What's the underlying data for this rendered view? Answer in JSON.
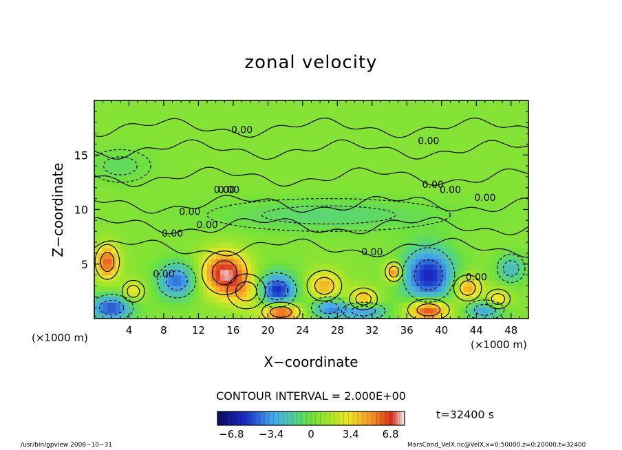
{
  "chart_data": {
    "type": "heatmap",
    "title": "zonal velocity",
    "xlabel": "X−coordinate",
    "ylabel": "Z−coordinate",
    "x_unit_left": "(×1000 m)",
    "x_unit_right": "(×1000 m)",
    "x_ticks": [
      "4",
      "8",
      "12",
      "16",
      "20",
      "24",
      "28",
      "32",
      "36",
      "40",
      "44",
      "48"
    ],
    "x_tick_values": [
      4,
      8,
      12,
      16,
      20,
      24,
      28,
      32,
      36,
      40,
      44,
      48
    ],
    "y_ticks": [
      "5",
      "10",
      "15"
    ],
    "y_tick_values": [
      5,
      10,
      15
    ],
    "xlim": [
      0,
      50
    ],
    "ylim": [
      0,
      20
    ],
    "contour_labels": [
      "0.00",
      "0.00",
      "0.00",
      "0.00",
      "0.00",
      "0.00",
      "0.00",
      "0.00",
      "0.00",
      "0.00",
      "0.00",
      "0.00",
      "0.00"
    ],
    "contour_label_positions": [
      [
        17,
        17
      ],
      [
        38.5,
        16
      ],
      [
        15.5,
        11.5
      ],
      [
        15,
        11.5
      ],
      [
        39,
        12
      ],
      [
        45,
        10.8
      ],
      [
        11,
        9.5
      ],
      [
        9,
        7.5
      ],
      [
        32,
        5.8
      ],
      [
        8,
        3.8
      ],
      [
        44,
        3.5
      ],
      [
        41,
        11.5
      ],
      [
        13,
        8.3
      ]
    ],
    "blobs": [
      {
        "x": 1.5,
        "z": 5.2,
        "v": 5.5,
        "rx": 1.4,
        "rz": 1.6
      },
      {
        "x": 15,
        "z": 4.2,
        "v": 6.8,
        "rx": 2.6,
        "rz": 2.0
      },
      {
        "x": 17.5,
        "z": 2.5,
        "v": 3.0,
        "rx": 2.2,
        "rz": 1.6
      },
      {
        "x": 9.5,
        "z": 3.5,
        "v": -5.0,
        "rx": 2.2,
        "rz": 1.6
      },
      {
        "x": 21,
        "z": 2.6,
        "v": -6.5,
        "rx": 2.3,
        "rz": 1.6
      },
      {
        "x": 21.5,
        "z": 0.6,
        "v": 6.8,
        "rx": 2.2,
        "rz": 0.9
      },
      {
        "x": 26.5,
        "z": 3.0,
        "v": 4.0,
        "rx": 2.0,
        "rz": 1.4
      },
      {
        "x": 27,
        "z": 1.0,
        "v": -4.5,
        "rx": 2.0,
        "rz": 1.0
      },
      {
        "x": 31,
        "z": 1.8,
        "v": 4.2,
        "rx": 1.6,
        "rz": 1.0
      },
      {
        "x": 34.5,
        "z": 4.3,
        "v": 5.5,
        "rx": 1.0,
        "rz": 0.9
      },
      {
        "x": 38.5,
        "z": 4.0,
        "v": -6.5,
        "rx": 3.0,
        "rz": 2.5
      },
      {
        "x": 38.5,
        "z": 0.8,
        "v": 6.8,
        "rx": 2.4,
        "rz": 1.0
      },
      {
        "x": 43,
        "z": 2.8,
        "v": 4.5,
        "rx": 1.6,
        "rz": 1.2
      },
      {
        "x": 46.5,
        "z": 1.8,
        "v": 3.5,
        "rx": 1.4,
        "rz": 0.9
      },
      {
        "x": 48,
        "z": 4.6,
        "v": -3.0,
        "rx": 1.6,
        "rz": 1.3
      },
      {
        "x": 2,
        "z": 1.0,
        "v": -5.5,
        "rx": 2.5,
        "rz": 1.2
      },
      {
        "x": 31,
        "z": 0.7,
        "v": -5.0,
        "rx": 2.5,
        "rz": 0.8
      },
      {
        "x": 45,
        "z": 0.8,
        "v": -4.0,
        "rx": 2.2,
        "rz": 0.9
      },
      {
        "x": 4.5,
        "z": 2.5,
        "v": 3.0,
        "rx": 1.3,
        "rz": 1.0
      },
      {
        "x": 27,
        "z": 9.5,
        "v": -1.5,
        "rx": 14,
        "rz": 1.5
      },
      {
        "x": 3,
        "z": 14,
        "v": -1.2,
        "rx": 3.5,
        "rz": 1.5
      }
    ]
  },
  "contour_interval": "CONTOUR INTERVAL = 2.000E+00",
  "time_label": "t=32400 s",
  "colorbar": {
    "min": -8.0,
    "max": 8.0,
    "tick_labels": [
      "−6.8",
      "−3.4",
      "0",
      "3.4",
      "6.8"
    ],
    "tick_values": [
      -6.8,
      -3.4,
      0,
      3.4,
      6.8
    ]
  },
  "footer": {
    "left": "/usr/bin/gpview    2008−10−31",
    "right": "MarsCond_VelX.nc@VelX,x=0:50000,z=0:20000,t=32400"
  }
}
